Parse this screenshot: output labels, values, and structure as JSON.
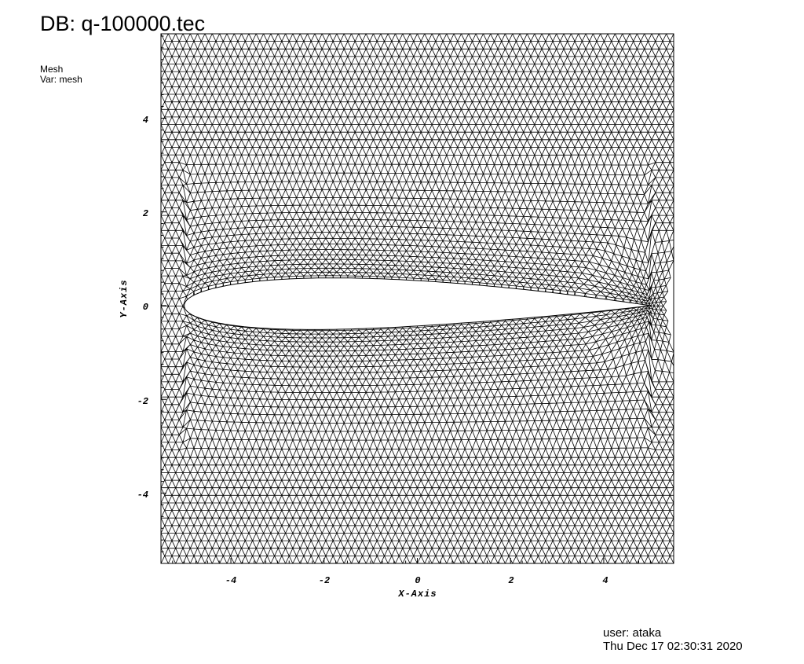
{
  "header": {
    "db_title": "DB: q-100000.tec",
    "plot_type": "Mesh",
    "plot_var": "Var: mesh"
  },
  "footer": {
    "user": "user: ataka",
    "date": "Thu Dec 17 02:30:31 2020"
  },
  "axes": {
    "x_label": "X-Axis",
    "y_label": "Y-Axis",
    "x_range": [
      -5.5,
      5.5
    ],
    "y_range": [
      -5.5,
      5.8
    ],
    "x_ticks": [
      -4,
      -2,
      0,
      2,
      4
    ],
    "y_ticks": [
      -4,
      -2,
      0,
      2,
      4
    ],
    "x_tick_labels": [
      "-4",
      "-2",
      "0",
      "2",
      "4"
    ],
    "y_tick_labels": [
      "-4",
      "-2",
      "0",
      "2",
      "4"
    ]
  },
  "mesh": {
    "element_type": "triangle",
    "line_color": "#000000",
    "background": "#ffffff",
    "body": "airfoil",
    "airfoil_leading_edge_x": -5.0,
    "airfoil_trailing_edge_x": 5.0,
    "airfoil_max_half_thickness": 0.55
  }
}
